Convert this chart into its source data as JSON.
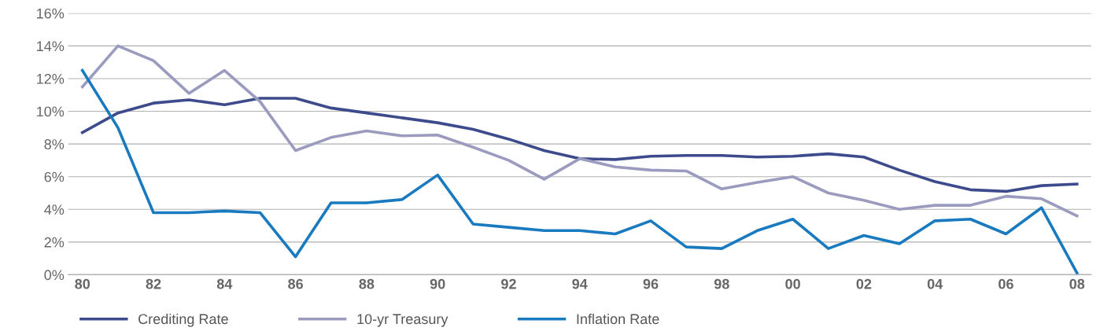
{
  "chart_data": {
    "type": "line",
    "categories": [
      "80",
      null,
      "82",
      null,
      "84",
      null,
      "86",
      null,
      "88",
      null,
      "90",
      null,
      "92",
      null,
      "94",
      null,
      "96",
      null,
      "98",
      null,
      "00",
      null,
      "02",
      null,
      "04",
      null,
      "06",
      null,
      "08"
    ],
    "series": [
      {
        "name": "Crediting Rate",
        "color": "#3d4b8c",
        "values": [
          8.7,
          9.9,
          10.5,
          10.7,
          10.4,
          10.8,
          10.8,
          10.2,
          9.9,
          9.6,
          9.3,
          8.9,
          8.3,
          7.6,
          7.1,
          7.05,
          7.25,
          7.3,
          7.3,
          7.2,
          7.25,
          7.4,
          7.2,
          6.4,
          5.7,
          5.2,
          5.1,
          5.45,
          5.55
        ]
      },
      {
        "name": "10-yr Treasury",
        "color": "#9b9bbf",
        "values": [
          11.5,
          14.0,
          13.1,
          11.1,
          12.5,
          10.6,
          7.6,
          8.4,
          8.8,
          8.5,
          8.55,
          7.8,
          7.0,
          5.85,
          7.1,
          6.6,
          6.4,
          6.35,
          5.25,
          5.65,
          6.0,
          5.0,
          4.55,
          4.0,
          4.25,
          4.25,
          4.8,
          4.65,
          3.6
        ]
      },
      {
        "name": "Inflation Rate",
        "color": "#1a7abf",
        "values": [
          12.5,
          9.0,
          3.8,
          3.8,
          3.9,
          3.8,
          1.1,
          4.4,
          4.4,
          4.6,
          6.1,
          3.1,
          2.9,
          2.7,
          2.7,
          2.5,
          3.3,
          1.7,
          1.6,
          2.7,
          3.4,
          1.6,
          2.4,
          1.9,
          3.3,
          3.4,
          2.5,
          4.1,
          0.1
        ]
      }
    ],
    "ylim": [
      0,
      16
    ],
    "yticks": [
      {
        "value": 0,
        "label": "0%"
      },
      {
        "value": 2,
        "label": "2%"
      },
      {
        "value": 4,
        "label": "4%"
      },
      {
        "value": 6,
        "label": "6%"
      },
      {
        "value": 8,
        "label": "8%"
      },
      {
        "value": 10,
        "label": "10%"
      },
      {
        "value": 12,
        "label": "12%"
      },
      {
        "value": 14,
        "label": "14%"
      },
      {
        "value": 16,
        "label": "16%"
      }
    ],
    "grid": "y",
    "legend": "bottom left",
    "marker": "none",
    "line_style": "solid"
  }
}
